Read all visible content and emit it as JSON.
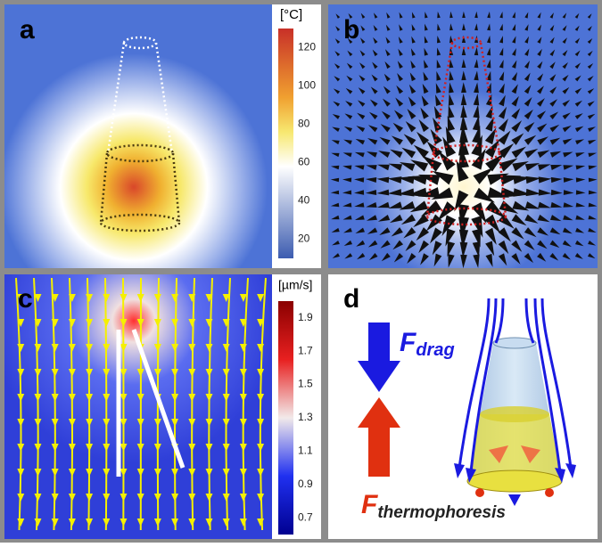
{
  "panels": [
    {
      "label": "a",
      "colorbar": {
        "unit": "[°C]",
        "ticks": [
          120,
          100,
          80,
          60,
          40,
          20
        ]
      }
    },
    {
      "label": "b"
    },
    {
      "label": "c",
      "colorbar": {
        "unit": "[µm/s]",
        "ticks": [
          1.9,
          1.7,
          1.5,
          1.3,
          1.1,
          0.9,
          0.7
        ]
      }
    },
    {
      "label": "d",
      "forces": {
        "drag": {
          "symbol": "F",
          "subscript": "drag"
        },
        "thermophoresis": {
          "symbol": "F",
          "subscript": "thermophoresis"
        }
      }
    }
  ]
}
